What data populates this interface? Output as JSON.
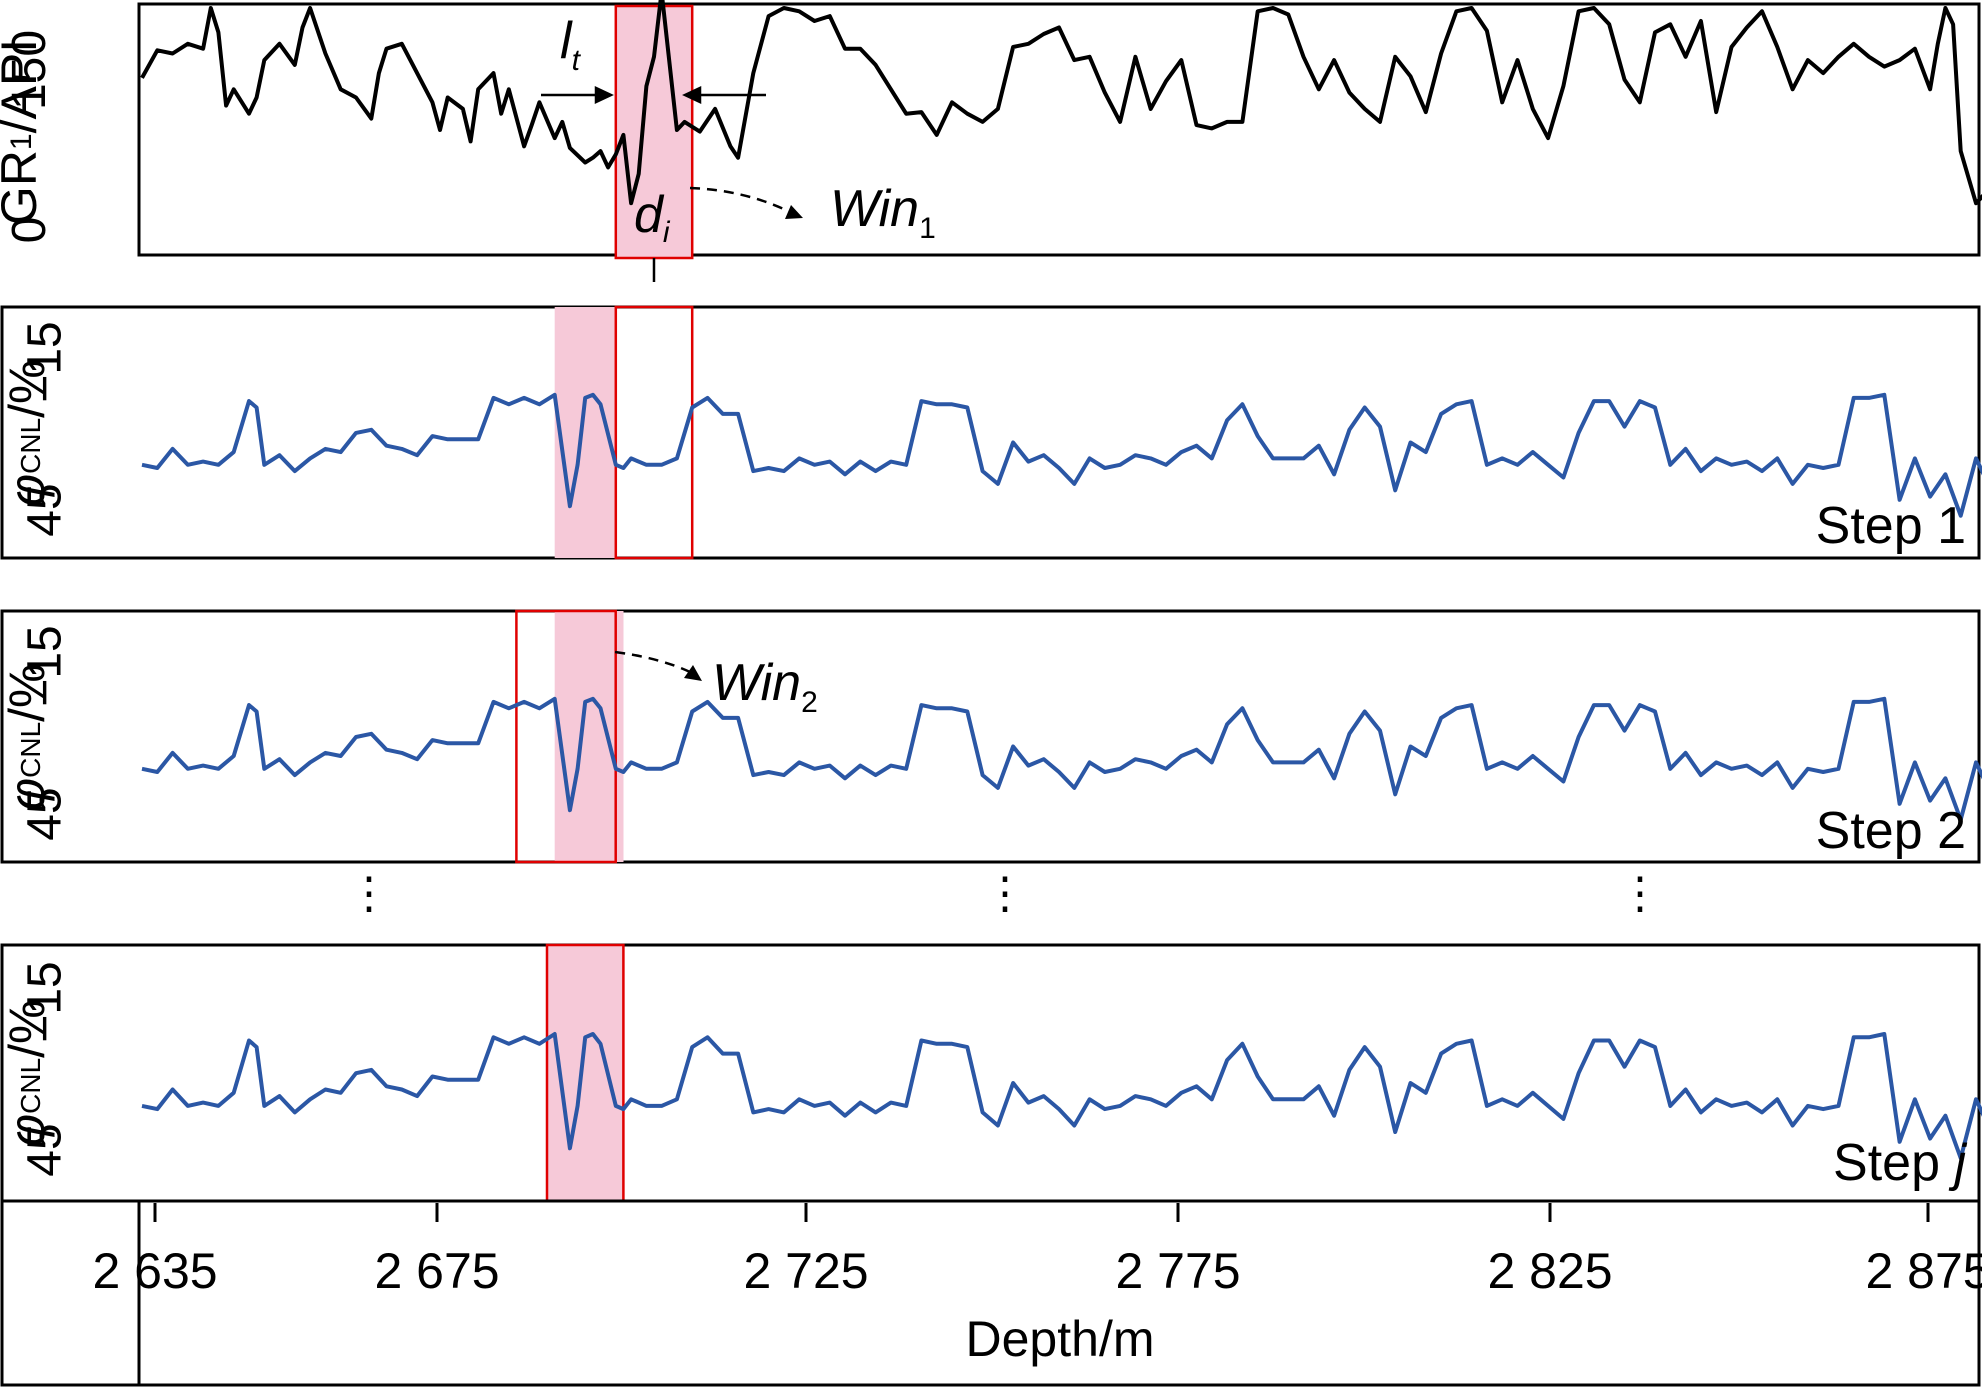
{
  "chart_data": {
    "type": "line",
    "xlabel": "Depth/m",
    "x_tick_labels": [
      "2 635",
      "2 675",
      "2 725",
      "2 775",
      "2 825",
      "2 875"
    ],
    "x_ticks": [
      2635,
      2675,
      2725,
      2775,
      2825,
      2875
    ],
    "xlim": [
      2635,
      2875
    ],
    "ellipsis_glyph": "⋮",
    "colors": {
      "gr": "#000000",
      "cnl": "#2b57a5",
      "window_fill": "#f6c9d8",
      "window_edge": "#e00000"
    },
    "panels": [
      {
        "id": "gr",
        "ylabel_main": "GR",
        "ylabel_sub": "1",
        "ylabel_unit": "/API",
        "yticks": [
          "0",
          "150"
        ],
        "ylim": [
          0,
          150
        ],
        "series": [
          {
            "color": "#000000",
            "x": [
              2635,
              2637,
              2639,
              2641,
              2643,
              2644,
              2645,
              2646,
              2647,
              2649,
              2650,
              2651,
              2653,
              2655,
              2656,
              2657,
              2659,
              2661,
              2663,
              2665,
              2666,
              2667,
              2669,
              2671,
              2673,
              2674,
              2675,
              2677,
              2678,
              2679,
              2681,
              2682,
              2683,
              2685,
              2686,
              2687,
              2689,
              2690,
              2691,
              2693,
              2694,
              2695,
              2696,
              2697,
              2698,
              2699,
              2700,
              2701,
              2702,
              2703,
              2705,
              2706,
              2708,
              2710,
              2712,
              2713,
              2715,
              2717,
              2719,
              2721,
              2723,
              2725,
              2727,
              2729,
              2731,
              2733,
              2735,
              2737,
              2739,
              2741,
              2743,
              2745,
              2747,
              2749,
              2751,
              2753,
              2755,
              2757,
              2759,
              2761,
              2763,
              2765,
              2767,
              2769,
              2771,
              2773,
              2775,
              2777,
              2779,
              2781,
              2783,
              2785,
              2787,
              2789,
              2791,
              2793,
              2795,
              2797,
              2799,
              2801,
              2803,
              2805,
              2807,
              2809,
              2811,
              2813,
              2815,
              2817,
              2819,
              2821,
              2823,
              2825,
              2827,
              2829,
              2831,
              2833,
              2835,
              2837,
              2839,
              2841,
              2843,
              2845,
              2847,
              2849,
              2851,
              2853,
              2855,
              2857,
              2859,
              2861,
              2863,
              2865,
              2867,
              2869,
              2870,
              2871,
              2872,
              2873,
              2875,
              2877,
              2878,
              2879
            ],
            "values": [
              107,
              124,
              122,
              128,
              125,
              150,
              135,
              90,
              100,
              85,
              95,
              118,
              128,
              115,
              138,
              150,
              122,
              100,
              95,
              82,
              110,
              125,
              128,
              110,
              92,
              75,
              95,
              88,
              68,
              100,
              110,
              85,
              100,
              65,
              78,
              92,
              70,
              80,
              64,
              55,
              58,
              62,
              52,
              60,
              72,
              30,
              48,
              102,
              120,
              160,
              75,
              80,
              74,
              88,
              65,
              58,
              110,
              145,
              150,
              148,
              142,
              145,
              125,
              125,
              115,
              100,
              85,
              86,
              72,
              92,
              85,
              80,
              88,
              126,
              128,
              134,
              138,
              118,
              120,
              98,
              80,
              120,
              88,
              105,
              118,
              78,
              76,
              80,
              80,
              148,
              150,
              146,
              120,
              100,
              118,
              98,
              88,
              80,
              120,
              108,
              86,
              122,
              148,
              150,
              136,
              92,
              118,
              88,
              70,
              102,
              148,
              150,
              140,
              106,
              92,
              135,
              140,
              120,
              142,
              86,
              126,
              138,
              148,
              126,
              100,
              118,
              110,
              120,
              128,
              120,
              114,
              118,
              125,
              100,
              128,
              150,
              140,
              62,
              30,
              40,
              54,
              68
            ]
          }
        ],
        "annotations": {
          "interval_label": "l",
          "interval_sub": "t",
          "depth_label": "d",
          "depth_sub": "i",
          "window_label": "Win",
          "window_sub": "1",
          "window_depth_range": [
            2697,
            2707
          ]
        }
      },
      {
        "id": "step1",
        "ylabel_main": "φ",
        "ylabel_sub": "CNL",
        "ylabel_unit": "/%",
        "yticks": [
          "45",
          "−15"
        ],
        "ylim": [
          45,
          -15
        ],
        "step_label": "Step 1",
        "window_depth_range": [
          2697,
          2707
        ],
        "shaded_depth_range": [
          2689,
          2697
        ]
      },
      {
        "id": "step2",
        "ylabel_main": "φ",
        "ylabel_sub": "CNL",
        "ylabel_unit": "/%",
        "yticks": [
          "45",
          "−15"
        ],
        "ylim": [
          45,
          -15
        ],
        "step_label": "Step 2",
        "window_depth_range": [
          2684,
          2697
        ],
        "shaded_depth_range": [
          2689,
          2698
        ],
        "window_label": "Win",
        "window_sub": "2"
      },
      {
        "id": "stepj",
        "ylabel_main": "φ",
        "ylabel_sub": "CNL",
        "ylabel_unit": "/%",
        "yticks": [
          "45",
          "−15"
        ],
        "ylim": [
          45,
          -15
        ],
        "step_label_prefix": "Step ",
        "step_label_var": "j",
        "window_depth_range": [
          2688,
          2698
        ]
      }
    ],
    "cnl_series": {
      "color": "#2b57a5",
      "x": [
        2635,
        2637,
        2639,
        2641,
        2643,
        2645,
        2647,
        2649,
        2650,
        2651,
        2653,
        2655,
        2657,
        2659,
        2661,
        2663,
        2665,
        2667,
        2669,
        2671,
        2673,
        2675,
        2677,
        2679,
        2681,
        2683,
        2685,
        2687,
        2689,
        2691,
        2692,
        2693,
        2694,
        2695,
        2697,
        2698,
        2699,
        2701,
        2703,
        2705,
        2707,
        2709,
        2711,
        2713,
        2715,
        2717,
        2719,
        2721,
        2723,
        2725,
        2727,
        2729,
        2731,
        2733,
        2735,
        2737,
        2739,
        2741,
        2743,
        2745,
        2747,
        2749,
        2751,
        2753,
        2755,
        2757,
        2759,
        2761,
        2763,
        2765,
        2767,
        2769,
        2771,
        2773,
        2775,
        2777,
        2779,
        2781,
        2783,
        2785,
        2787,
        2789,
        2791,
        2793,
        2795,
        2797,
        2799,
        2801,
        2803,
        2805,
        2807,
        2809,
        2811,
        2813,
        2815,
        2817,
        2819,
        2821,
        2823,
        2825,
        2827,
        2829,
        2831,
        2833,
        2835,
        2837,
        2839,
        2841,
        2843,
        2845,
        2847,
        2849,
        2851,
        2853,
        2855,
        2857,
        2859,
        2861,
        2863,
        2865,
        2867,
        2869,
        2871,
        2873,
        2875,
        2877,
        2879
      ],
      "values": [
        22,
        23,
        17,
        22,
        21,
        22,
        18,
        2,
        4,
        22,
        19,
        24,
        20,
        17,
        18,
        12,
        11,
        16,
        17,
        19,
        13,
        14,
        14,
        14,
        1,
        3,
        1,
        3,
        0,
        35,
        22,
        1,
        0,
        3,
        22,
        23,
        20,
        22,
        22,
        20,
        4,
        1,
        6,
        6,
        24,
        23,
        24,
        20,
        22,
        21,
        25,
        21,
        24,
        21,
        22,
        2,
        3,
        3,
        4,
        24,
        28,
        15,
        21,
        19,
        23,
        28,
        20,
        23,
        22,
        19,
        20,
        22,
        18,
        16,
        20,
        8,
        3,
        13,
        20,
        20,
        20,
        16,
        25,
        11,
        4,
        10,
        30,
        15,
        18,
        6,
        3,
        2,
        22,
        20,
        22,
        18,
        22,
        26,
        12,
        2,
        2,
        10,
        2,
        4,
        22,
        17,
        24,
        20,
        22,
        21,
        24,
        20,
        28,
        22,
        23,
        22,
        1,
        1,
        0,
        33,
        20,
        32,
        25,
        38,
        20,
        30,
        33
      ]
    }
  }
}
